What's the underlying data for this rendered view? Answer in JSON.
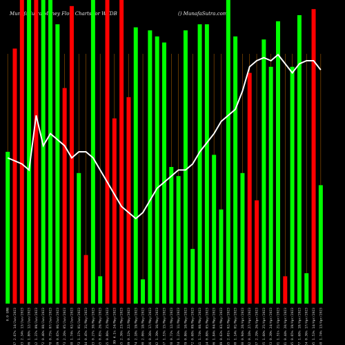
{
  "header": {
    "title_left": "MunafaSutra  Money Flow  Charts for WTDB",
    "title_right": "() MunafaSutra.com"
  },
  "chart_data": {
    "type": "bar",
    "title": "Money Flow Charts for WTDB",
    "series_line": "money flow index",
    "colors": {
      "up": "#00ff00",
      "down": "#ff0000",
      "line": "#ffffff",
      "grid": "#a05a00",
      "background": "#000000"
    },
    "categories": [
      "0.0 GRN",
      "28.47 2.67% 14/Jun/2023",
      "29.33 2.34% 13/Jun/2023",
      "28.06 1.80% 12/Jun/2023",
      "28.12 1.37% 09/Jun/2023",
      "27.72 0.40% 08/Jun/2023",
      "27.78 0.75% 07/Jun/2023",
      "27.59 0.65% 06/Jun/2023",
      "27.73 2.26% 05/Jun/2023",
      "27.88 1.74% 02/Jun/2023",
      "27.73 1.17% 01/Jun/2023",
      "27.44 0.45% 31/May/2023",
      "27.33 0.27% 30/May/2023",
      "25.55 0.85% 26/May/2023",
      "25.65 0.86% 25/May/2023",
      "25.99 4.1% 24/May/2023",
      "25.55 2.36% 23/May/2023",
      "26.39 0.12% 22/May/2023",
      "26.74 2.18% 19/May/2023",
      "27.00 2.06% 18/May/2023",
      "27.56 0.36% 17/May/2023",
      "26.92 1.39% 16/May/2023",
      "26.57 1.53% 15/May/2023",
      "26.28 0.72% 12/May/2023",
      "26.24 1.23% 11/May/2023",
      "26.29 0.86% 10/May/2023",
      "26.72 0.68% 09/May/2023",
      "27.11 1.74% 08/May/2023",
      "27.14 0.88% 05/May/2023",
      "28.06 1.84% 04/May/2023",
      "28.49 0.63% 03/May/2023",
      "28.65 2.01% 02/May/2023",
      "28.00 1.14% 01/May/2023",
      "27.80 0.94% 28/Apr/2023",
      "28.82 0.18% 27/Apr/2023",
      "28.37 2.29% 26/Apr/2023",
      "28.25 1.60% 25/Apr/2023",
      "28.23 0.39% 24/Apr/2023",
      "29.01 1.51% 21/Apr/2023",
      "29.41 0.44% 20/Apr/2023",
      "28.95 0.65% 19/Apr/2023",
      "28.77 1.68% 18/Apr/2023",
      "28.24 0.36% 17/Apr/2023",
      "28.95 1.53% 14/Apr/2023",
      "28.58 1.74% 13/Apr/2023"
    ],
    "bar_heights": [
      0.5,
      0.84,
      1.0,
      1.0,
      1.0,
      1.0,
      1.0,
      0.92,
      0.71,
      0.98,
      0.43,
      0.16,
      1.0,
      0.09,
      1.0,
      0.61,
      1.0,
      0.68,
      0.91,
      0.08,
      0.9,
      0.88,
      0.86,
      0.45,
      0.42,
      0.9,
      0.18,
      0.92,
      0.92,
      0.49,
      0.31,
      1.0,
      0.88,
      0.43,
      0.76,
      0.34,
      0.87,
      0.78,
      0.93,
      0.09,
      0.78,
      0.95,
      0.1,
      0.97,
      0.39
    ],
    "bar_colors": [
      "up",
      "down",
      "down",
      "up",
      "down",
      "up",
      "up",
      "up",
      "down",
      "down",
      "up",
      "down",
      "up",
      "up",
      "down",
      "down",
      "down",
      "down",
      "up",
      "up",
      "up",
      "up",
      "up",
      "up",
      "up",
      "up",
      "up",
      "up",
      "up",
      "up",
      "up",
      "up",
      "up",
      "up",
      "down",
      "down",
      "up",
      "up",
      "up",
      "down",
      "up",
      "up",
      "up",
      "down",
      "up"
    ],
    "line_values": [
      0.48,
      0.47,
      0.46,
      0.44,
      0.62,
      0.52,
      0.56,
      0.54,
      0.52,
      0.48,
      0.5,
      0.5,
      0.48,
      0.44,
      0.4,
      0.36,
      0.32,
      0.3,
      0.28,
      0.3,
      0.34,
      0.38,
      0.4,
      0.42,
      0.44,
      0.44,
      0.46,
      0.5,
      0.53,
      0.56,
      0.6,
      0.62,
      0.64,
      0.7,
      0.78,
      0.8,
      0.81,
      0.8,
      0.82,
      0.79,
      0.76,
      0.79,
      0.8,
      0.8,
      0.77
    ],
    "ylim": [
      0,
      1
    ],
    "grid": true,
    "legend": "none"
  }
}
